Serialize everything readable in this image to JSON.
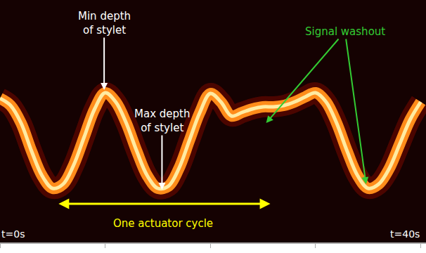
{
  "chart_data": {
    "type": "line",
    "x": [
      0,
      1,
      2,
      3,
      4,
      5,
      6,
      7,
      8,
      9,
      10,
      11,
      12,
      13,
      14,
      15,
      16,
      17,
      18,
      19,
      20,
      21,
      22,
      23,
      24,
      25,
      26,
      27,
      28,
      29,
      30,
      31,
      32,
      33,
      34,
      35,
      36,
      37,
      38,
      39,
      40
    ],
    "values": [
      140,
      150,
      175,
      215,
      250,
      268,
      262,
      235,
      195,
      155,
      132,
      145,
      175,
      215,
      250,
      268,
      265,
      240,
      200,
      160,
      133,
      145,
      165,
      160,
      155,
      152,
      152,
      150,
      145,
      138,
      132,
      145,
      175,
      215,
      250,
      268,
      262,
      240,
      205,
      170,
      145
    ],
    "color": "#ff8c1a",
    "xlim": [
      0,
      40.5
    ],
    "ylim": [
      0,
      345
    ],
    "xticks": [
      {
        "value": 0,
        "label": "t=0s"
      },
      {
        "value": 10,
        "label": null
      },
      {
        "value": 20,
        "label": null
      },
      {
        "value": 30,
        "label": null
      },
      {
        "value": 40,
        "label": "t=40s"
      }
    ],
    "tick_labels": "x",
    "annotations": [
      {
        "text": "Min depth\nof stylet",
        "x": 9.9,
        "y": 128,
        "color": "#ffffff"
      },
      {
        "text": "Max depth\nof stylet",
        "x": 15.4,
        "y": 270,
        "color": "#ffffff"
      },
      {
        "text": "Signal washout",
        "points": [
          [
            25.3,
            175
          ],
          [
            34.8,
            262
          ]
        ],
        "color": "#33cc33"
      },
      {
        "text": "One actuator cycle",
        "span": [
          5.3,
          25.7
        ],
        "y": 290,
        "color": "#ffff00"
      }
    ]
  }
}
